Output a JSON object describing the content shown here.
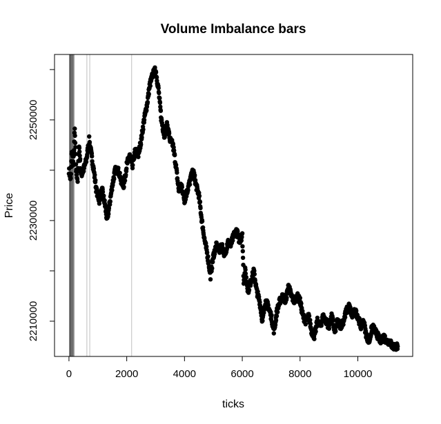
{
  "chart_data": {
    "type": "scatter",
    "title": "Volume Imbalance bars",
    "xlabel": "ticks",
    "ylabel": "Price",
    "xlim": [
      -500,
      11900
    ],
    "ylim": [
      2203000,
      2263000
    ],
    "x_ticks": [
      0,
      2000,
      4000,
      6000,
      8000,
      10000
    ],
    "x_tick_labels": [
      "0",
      "2000",
      "4000",
      "6000",
      "8000",
      "10000"
    ],
    "y_ticks": [
      2210000,
      2220000,
      2230000,
      2240000,
      2250000,
      2260000
    ],
    "y_tick_labels": [
      "2210000",
      "",
      "2230000",
      "",
      "2250000",
      ""
    ],
    "grid": false,
    "point_color": "#000000",
    "bar_line_color": "#bfbfbf",
    "bar_positions": [
      20,
      40,
      60,
      80,
      110,
      140,
      170,
      620,
      720,
      2170
    ],
    "price_path": [
      [
        0,
        2240000
      ],
      [
        60,
        2238000
      ],
      [
        100,
        2244000
      ],
      [
        150,
        2241000
      ],
      [
        200,
        2248000
      ],
      [
        250,
        2240000
      ],
      [
        300,
        2238000
      ],
      [
        350,
        2245000
      ],
      [
        420,
        2239000
      ],
      [
        500,
        2240000
      ],
      [
        600,
        2242000
      ],
      [
        700,
        2246000
      ],
      [
        780,
        2243000
      ],
      [
        860,
        2240000
      ],
      [
        950,
        2236000
      ],
      [
        1050,
        2234000
      ],
      [
        1150,
        2236000
      ],
      [
        1250,
        2233000
      ],
      [
        1320,
        2230000
      ],
      [
        1400,
        2233000
      ],
      [
        1500,
        2237000
      ],
      [
        1600,
        2240000
      ],
      [
        1700,
        2240000
      ],
      [
        1800,
        2238000
      ],
      [
        1900,
        2237000
      ],
      [
        2000,
        2241000
      ],
      [
        2100,
        2243000
      ],
      [
        2200,
        2241000
      ],
      [
        2300,
        2244000
      ],
      [
        2400,
        2243000
      ],
      [
        2500,
        2246000
      ],
      [
        2600,
        2250000
      ],
      [
        2700,
        2253000
      ],
      [
        2800,
        2257000
      ],
      [
        2900,
        2259000
      ],
      [
        3000,
        2260000
      ],
      [
        3100,
        2256000
      ],
      [
        3200,
        2250000
      ],
      [
        3300,
        2247000
      ],
      [
        3400,
        2249000
      ],
      [
        3500,
        2246000
      ],
      [
        3600,
        2245000
      ],
      [
        3700,
        2241000
      ],
      [
        3800,
        2236000
      ],
      [
        3900,
        2237000
      ],
      [
        4000,
        2234000
      ],
      [
        4100,
        2236000
      ],
      [
        4200,
        2238000
      ],
      [
        4300,
        2240000
      ],
      [
        4400,
        2237000
      ],
      [
        4500,
        2235000
      ],
      [
        4600,
        2230000
      ],
      [
        4700,
        2226000
      ],
      [
        4800,
        2223000
      ],
      [
        4900,
        2219000
      ],
      [
        5000,
        2223000
      ],
      [
        5100,
        2225000
      ],
      [
        5200,
        2224000
      ],
      [
        5300,
        2225000
      ],
      [
        5400,
        2223000
      ],
      [
        5500,
        2226000
      ],
      [
        5600,
        2225000
      ],
      [
        5700,
        2227000
      ],
      [
        5800,
        2228000
      ],
      [
        5900,
        2226000
      ],
      [
        6000,
        2227000
      ],
      [
        6050,
        2218000
      ],
      [
        6100,
        2220000
      ],
      [
        6200,
        2216000
      ],
      [
        6300,
        2218000
      ],
      [
        6400,
        2220000
      ],
      [
        6500,
        2216000
      ],
      [
        6600,
        2214000
      ],
      [
        6700,
        2210000
      ],
      [
        6800,
        2214000
      ],
      [
        6900,
        2213000
      ],
      [
        7000,
        2211000
      ],
      [
        7100,
        2208000
      ],
      [
        7200,
        2212000
      ],
      [
        7300,
        2214000
      ],
      [
        7400,
        2215000
      ],
      [
        7500,
        2214000
      ],
      [
        7600,
        2217000
      ],
      [
        7700,
        2215000
      ],
      [
        7800,
        2214000
      ],
      [
        7900,
        2215000
      ],
      [
        8000,
        2214000
      ],
      [
        8100,
        2211000
      ],
      [
        8200,
        2210000
      ],
      [
        8300,
        2211000
      ],
      [
        8400,
        2208000
      ],
      [
        8500,
        2207000
      ],
      [
        8600,
        2210000
      ],
      [
        8700,
        2209000
      ],
      [
        8800,
        2211000
      ],
      [
        8900,
        2210000
      ],
      [
        9000,
        2209000
      ],
      [
        9100,
        2211000
      ],
      [
        9200,
        2208000
      ],
      [
        9300,
        2210000
      ],
      [
        9400,
        2209000
      ],
      [
        9500,
        2210000
      ],
      [
        9600,
        2212000
      ],
      [
        9700,
        2213000
      ],
      [
        9800,
        2211000
      ],
      [
        9900,
        2212000
      ],
      [
        10000,
        2211000
      ],
      [
        10100,
        2209000
      ],
      [
        10200,
        2210000
      ],
      [
        10300,
        2207000
      ],
      [
        10400,
        2206000
      ],
      [
        10500,
        2209000
      ],
      [
        10600,
        2208000
      ],
      [
        10700,
        2207000
      ],
      [
        10800,
        2206000
      ],
      [
        10900,
        2207000
      ],
      [
        11000,
        2206000
      ],
      [
        11100,
        2206000
      ],
      [
        11200,
        2205000
      ],
      [
        11300,
        2205000
      ],
      [
        11380,
        2205000
      ]
    ]
  }
}
